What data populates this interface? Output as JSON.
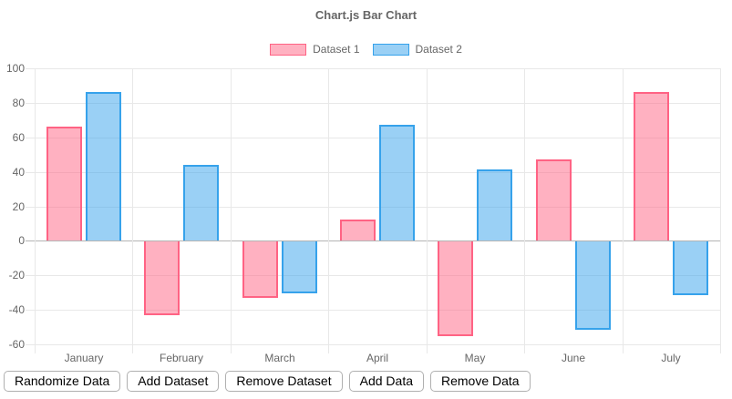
{
  "chart_data": {
    "type": "bar",
    "title": "Chart.js Bar Chart",
    "categories": [
      "January",
      "February",
      "March",
      "April",
      "May",
      "June",
      "July"
    ],
    "series": [
      {
        "name": "Dataset 1",
        "values": [
          66,
          -43,
          -33,
          12,
          -55,
          47,
          86
        ],
        "fill_color": "rgba(255, 99, 132, 0.5)",
        "border_color": "rgb(255, 99, 132)"
      },
      {
        "name": "Dataset 2",
        "values": [
          86,
          44,
          -30,
          67,
          41,
          -51,
          -31
        ],
        "fill_color": "rgba(54, 162, 235, 0.5)",
        "border_color": "rgb(54, 162, 235)"
      }
    ],
    "xlabel": "",
    "ylabel": "",
    "ylim": [
      -60,
      100
    ],
    "yticks": [
      100,
      80,
      60,
      40,
      20,
      0,
      -20,
      -40,
      -60
    ],
    "grid": true,
    "legend_position": "top",
    "bar_border_width": 2
  },
  "buttons": [
    "Randomize Data",
    "Add Dataset",
    "Remove Dataset",
    "Add Data",
    "Remove Data"
  ],
  "colors": {
    "grid": "#e8e8e8",
    "zero_line": "#b4b4b4",
    "axis_text": "#666666",
    "title_text": "#666666",
    "button_border": "#b0b0b0",
    "button_text": "#000000",
    "background": "#ffffff"
  }
}
